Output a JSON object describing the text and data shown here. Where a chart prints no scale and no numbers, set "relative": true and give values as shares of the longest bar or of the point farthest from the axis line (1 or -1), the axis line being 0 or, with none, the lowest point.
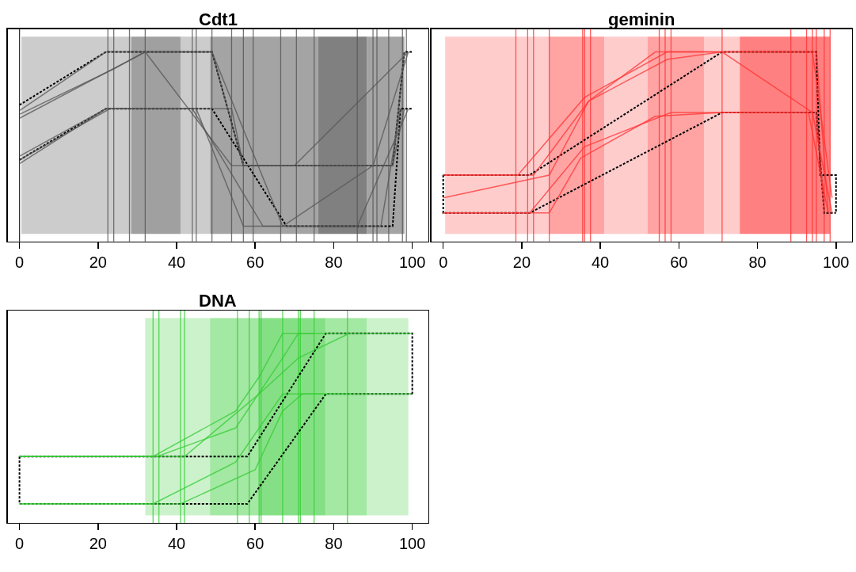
{
  "chart_data": [
    {
      "type": "line",
      "title": "Cdt1",
      "relative": true,
      "xlim": [
        -3,
        104
      ],
      "xticks": [
        0,
        20,
        40,
        60,
        80,
        100
      ],
      "tick_labels": "x",
      "series": [
        {
          "color": "#000000",
          "line_style": "dashed",
          "x": [
            0,
            22,
            49,
            57,
            95,
            98,
            100
          ],
          "values": [
            0.72,
            1,
            1,
            0.4,
            0.4,
            1,
            1
          ]
        },
        {
          "color": "#000000",
          "line_style": "dashed",
          "x": [
            0,
            22,
            49,
            68,
            95,
            97,
            100
          ],
          "values": [
            0.43,
            0.7,
            0.7,
            0.08,
            0.08,
            0.7,
            0.7
          ]
        },
        {
          "color": "#555555",
          "x": [
            0,
            22,
            49,
            57,
            95,
            98
          ],
          "values": [
            0.69,
            1,
            1,
            0.4,
            0.4,
            1
          ]
        },
        {
          "color": "#555555",
          "x": [
            0,
            24,
            32,
            54,
            70,
            99
          ],
          "values": [
            0.67,
            0.91,
            1,
            0.4,
            0.4,
            1
          ]
        },
        {
          "color": "#555555",
          "x": [
            0,
            23,
            44,
            62,
            86,
            99
          ],
          "values": [
            0.43,
            0.7,
            0.7,
            0.08,
            0.08,
            0.7
          ]
        },
        {
          "color": "#555555",
          "x": [
            0,
            22,
            45,
            57,
            92,
            97
          ],
          "values": [
            0.41,
            0.7,
            0.7,
            0.08,
            0.08,
            0.7
          ]
        },
        {
          "color": "#555555",
          "x": [
            0,
            32,
            49,
            67,
            90,
            99
          ],
          "values": [
            0.65,
            1,
            1,
            0.08,
            0.4,
            1
          ]
        },
        {
          "color": "#555555",
          "x": [
            0,
            22,
            54,
            57,
            95,
            98
          ],
          "values": [
            0.45,
            0.7,
            0.7,
            0.4,
            0.4,
            0.7
          ]
        }
      ],
      "bands": [
        {
          "axis": "x",
          "from": 0.5,
          "to": 28.5,
          "color": "#cccccc"
        },
        {
          "axis": "x",
          "from": 28.5,
          "to": 41,
          "color": "#a0a0a0"
        },
        {
          "axis": "x",
          "from": 41,
          "to": 48.5,
          "color": "#cccccc"
        },
        {
          "axis": "x",
          "from": 48.5,
          "to": 76,
          "color": "#a4a4a4"
        },
        {
          "axis": "x",
          "from": 76,
          "to": 88.5,
          "color": "#808080"
        },
        {
          "axis": "x",
          "from": 88.5,
          "to": 98,
          "color": "#a4a4a4"
        }
      ],
      "ref_lines": [
        {
          "axis": "x",
          "value": 0,
          "color": "#000000"
        },
        {
          "axis": "x",
          "value": 22.5,
          "color": "#555555"
        },
        {
          "axis": "x",
          "value": 24,
          "color": "#555555"
        },
        {
          "axis": "x",
          "value": 28,
          "color": "#555555"
        },
        {
          "axis": "x",
          "value": 32,
          "color": "#555555"
        },
        {
          "axis": "x",
          "value": 44,
          "color": "#555555"
        },
        {
          "axis": "x",
          "value": 45,
          "color": "#555555"
        },
        {
          "axis": "x",
          "value": 49,
          "color": "#555555"
        },
        {
          "axis": "x",
          "value": 54,
          "color": "#555555"
        },
        {
          "axis": "x",
          "value": 57,
          "color": "#555555"
        },
        {
          "axis": "x",
          "value": 59.5,
          "color": "#555555"
        },
        {
          "axis": "x",
          "value": 66.5,
          "color": "#555555"
        },
        {
          "axis": "x",
          "value": 70.5,
          "color": "#555555"
        },
        {
          "axis": "x",
          "value": 75,
          "color": "#555555"
        },
        {
          "axis": "x",
          "value": 86,
          "color": "#555555"
        },
        {
          "axis": "x",
          "value": 90,
          "color": "#555555"
        },
        {
          "axis": "x",
          "value": 91,
          "color": "#555555"
        },
        {
          "axis": "x",
          "value": 94,
          "color": "#555555"
        },
        {
          "axis": "x",
          "value": 97.5,
          "color": "#555555"
        },
        {
          "axis": "x",
          "value": 98.5,
          "color": "#555555"
        }
      ]
    },
    {
      "type": "line",
      "title": "geminin",
      "relative": true,
      "xlim": [
        -3,
        104
      ],
      "xticks": [
        0,
        20,
        40,
        60,
        80,
        100
      ],
      "tick_labels": "x",
      "series": [
        {
          "color": "#000000",
          "line_style": "dashed",
          "x": [
            0,
            22,
            71,
            95,
            96,
            100,
            100
          ],
          "values": [
            0.35,
            0.35,
            1,
            1,
            0.35,
            0.35,
            0.15
          ]
        },
        {
          "color": "#000000",
          "line_style": "dashed",
          "x": [
            0,
            0,
            22,
            71,
            95,
            97,
            100
          ],
          "values": [
            0.35,
            0.15,
            0.15,
            0.68,
            0.68,
            0.15,
            0.15
          ]
        },
        {
          "color": "#ff3333",
          "x": [
            0,
            19,
            36,
            57,
            71,
            95,
            98
          ],
          "values": [
            0.35,
            0.35,
            0.76,
            1,
            1,
            1,
            0.15
          ]
        },
        {
          "color": "#ff3333",
          "x": [
            0,
            23,
            37,
            54,
            71,
            94,
            99
          ],
          "values": [
            0.35,
            0.35,
            0.74,
            1,
            1,
            1,
            0.23
          ]
        },
        {
          "color": "#ff3333",
          "x": [
            0,
            22,
            36,
            58,
            71,
            95,
            97
          ],
          "values": [
            0.15,
            0.15,
            0.5,
            0.68,
            0.68,
            0.68,
            0.15
          ]
        },
        {
          "color": "#ff3333",
          "x": [
            0,
            27,
            35,
            54,
            71,
            93,
            98
          ],
          "values": [
            0.15,
            0.15,
            0.44,
            0.66,
            0.68,
            0.68,
            0.15
          ]
        },
        {
          "color": "#ff3333",
          "x": [
            0,
            27,
            37,
            57,
            71,
            94,
            99
          ],
          "values": [
            0.23,
            0.35,
            0.74,
            0.96,
            1,
            0.68,
            0.15
          ]
        }
      ],
      "bands": [
        {
          "axis": "x",
          "from": 0.5,
          "to": 27,
          "color": "#ffcccc"
        },
        {
          "axis": "x",
          "from": 27,
          "to": 41,
          "color": "#ffa3a3"
        },
        {
          "axis": "x",
          "from": 41,
          "to": 52,
          "color": "#ffcccc"
        },
        {
          "axis": "x",
          "from": 52,
          "to": 66.5,
          "color": "#ffa3a3"
        },
        {
          "axis": "x",
          "from": 66.5,
          "to": 75.5,
          "color": "#ffcccc"
        },
        {
          "axis": "x",
          "from": 75.5,
          "to": 98.5,
          "color": "#ff8080"
        }
      ],
      "ref_lines": [
        {
          "axis": "x",
          "value": 18.5,
          "color": "#ff3333"
        },
        {
          "axis": "x",
          "value": 21.5,
          "color": "#ff3333"
        },
        {
          "axis": "x",
          "value": 23,
          "color": "#ff3333"
        },
        {
          "axis": "x",
          "value": 27,
          "color": "#ff3333"
        },
        {
          "axis": "x",
          "value": 35.5,
          "color": "#ff3333"
        },
        {
          "axis": "x",
          "value": 36,
          "color": "#ff3333"
        },
        {
          "axis": "x",
          "value": 37.5,
          "color": "#ff3333"
        },
        {
          "axis": "x",
          "value": 55,
          "color": "#ff3333"
        },
        {
          "axis": "x",
          "value": 56.5,
          "color": "#ff3333"
        },
        {
          "axis": "x",
          "value": 58,
          "color": "#ff3333"
        },
        {
          "axis": "x",
          "value": 71,
          "color": "#ff3333"
        },
        {
          "axis": "x",
          "value": 88.5,
          "color": "#ff3333"
        },
        {
          "axis": "x",
          "value": 92.5,
          "color": "#ff3333"
        },
        {
          "axis": "x",
          "value": 94,
          "color": "#ff3333"
        },
        {
          "axis": "x",
          "value": 95,
          "color": "#ff3333"
        },
        {
          "axis": "x",
          "value": 97,
          "color": "#ff3333"
        },
        {
          "axis": "x",
          "value": 98.5,
          "color": "#ff3333"
        }
      ]
    },
    {
      "type": "line",
      "title": "DNA",
      "relative": true,
      "xlim": [
        -3,
        104
      ],
      "xticks": [
        0,
        20,
        40,
        60,
        80,
        100
      ],
      "tick_labels": "x",
      "series": [
        {
          "color": "#000000",
          "line_style": "dashed",
          "x": [
            0,
            58,
            78,
            100,
            100
          ],
          "values": [
            0.35,
            0.35,
            1,
            1,
            0.68
          ]
        },
        {
          "color": "#000000",
          "line_style": "dashed",
          "x": [
            0,
            0,
            58,
            78,
            100
          ],
          "values": [
            0.35,
            0.1,
            0.1,
            0.68,
            0.68
          ]
        },
        {
          "color": "#33cc33",
          "x": [
            0,
            34,
            55,
            61,
            67,
            100
          ],
          "values": [
            0.35,
            0.35,
            0.59,
            0.77,
            1,
            1
          ]
        },
        {
          "color": "#33cc33",
          "x": [
            0,
            35,
            55,
            67,
            71,
            75
          ],
          "values": [
            0.35,
            0.35,
            0.5,
            0.87,
            1,
            1
          ]
        },
        {
          "color": "#33cc33",
          "x": [
            0,
            34,
            55,
            61,
            67,
            100
          ],
          "values": [
            0.1,
            0.1,
            0.32,
            0.5,
            0.68,
            0.68
          ]
        },
        {
          "color": "#33cc33",
          "x": [
            0,
            41,
            60,
            67,
            72,
            84
          ],
          "values": [
            0.1,
            0.1,
            0.28,
            0.59,
            0.68,
            0.68
          ]
        },
        {
          "color": "#33cc33",
          "x": [
            0,
            42,
            61,
            71,
            84
          ],
          "values": [
            0.35,
            0.35,
            0.68,
            0.87,
            1
          ]
        }
      ],
      "bands": [
        {
          "axis": "x",
          "from": 32,
          "to": 48.5,
          "color": "#ccf2cc"
        },
        {
          "axis": "x",
          "from": 48.5,
          "to": 61,
          "color": "#a3e8a3"
        },
        {
          "axis": "x",
          "from": 61,
          "to": 78,
          "color": "#85e085"
        },
        {
          "axis": "x",
          "from": 78,
          "to": 88.5,
          "color": "#a3e8a3"
        },
        {
          "axis": "x",
          "from": 88.5,
          "to": 99,
          "color": "#ccf2cc"
        }
      ],
      "ref_lines": [
        {
          "axis": "x",
          "value": 34,
          "color": "#33cc33"
        },
        {
          "axis": "x",
          "value": 35.5,
          "color": "#33cc33"
        },
        {
          "axis": "x",
          "value": 41,
          "color": "#33cc33"
        },
        {
          "axis": "x",
          "value": 42,
          "color": "#33cc33"
        },
        {
          "axis": "x",
          "value": 55.5,
          "color": "#33cc33"
        },
        {
          "axis": "x",
          "value": 58.5,
          "color": "#33cc33"
        },
        {
          "axis": "x",
          "value": 61,
          "color": "#33cc33"
        },
        {
          "axis": "x",
          "value": 61.5,
          "color": "#33cc33"
        },
        {
          "axis": "x",
          "value": 67,
          "color": "#33cc33"
        },
        {
          "axis": "x",
          "value": 71,
          "color": "#33cc33"
        },
        {
          "axis": "x",
          "value": 71.5,
          "color": "#33cc33"
        },
        {
          "axis": "x",
          "value": 75,
          "color": "#33cc33"
        },
        {
          "axis": "x",
          "value": 83.5,
          "color": "#33cc33"
        }
      ]
    }
  ]
}
